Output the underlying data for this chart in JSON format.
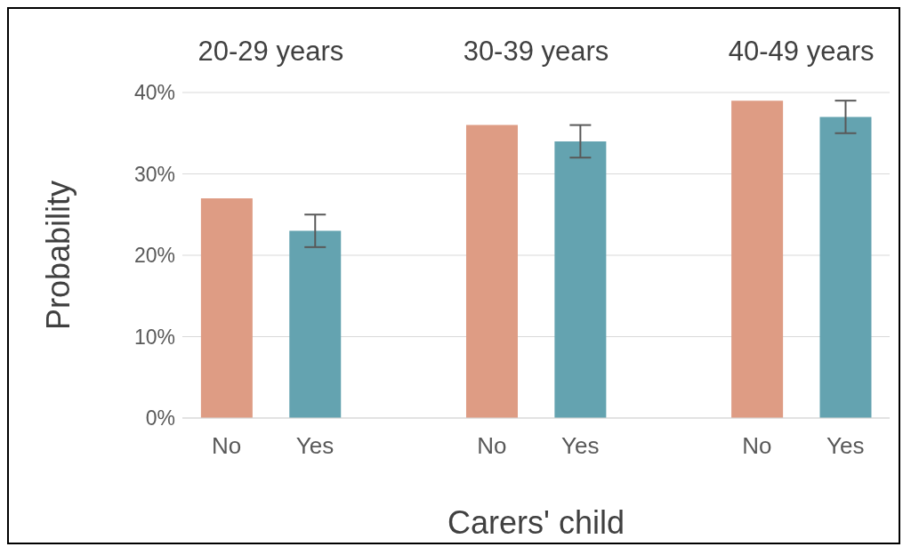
{
  "chart_data": {
    "type": "bar",
    "xlabel": "Carers' child",
    "ylabel": "Probability",
    "categories": [
      "No",
      "Yes",
      null,
      "No",
      "Yes",
      null,
      "No",
      "Yes"
    ],
    "values": [
      27,
      23,
      null,
      36,
      34,
      null,
      39,
      37
    ],
    "colors": [
      "#de9c84",
      "#64a3b0",
      null,
      "#de9c84",
      "#64a3b0",
      null,
      "#de9c84",
      "#64a3b0"
    ],
    "errors": [
      0,
      2,
      null,
      0,
      2,
      null,
      0,
      2
    ],
    "annotations": [
      "20-29 years",
      "30-39 years",
      "40-49 years"
    ],
    "ylim": [
      0,
      40
    ],
    "yticks": [
      {
        "value": 0,
        "label": "0%"
      },
      {
        "value": 10,
        "label": "10%"
      },
      {
        "value": 20,
        "label": "20%"
      },
      {
        "value": 30,
        "label": "30%"
      },
      {
        "value": 40,
        "label": "40%"
      }
    ],
    "grid": "y",
    "legend": false
  }
}
